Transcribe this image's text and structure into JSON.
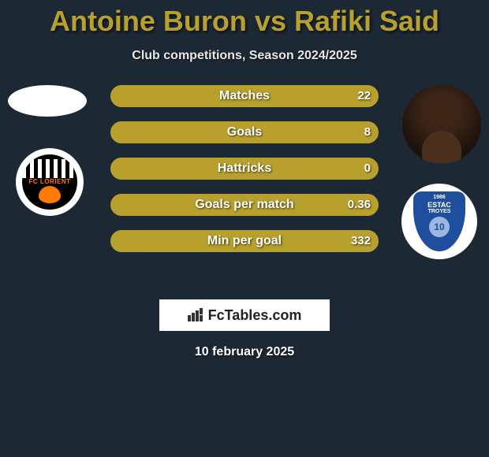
{
  "title_color": "#b7a02e",
  "title": "Antoine Buron vs Rafiki Said",
  "subtitle": "Club competitions, Season 2024/2025",
  "bars": {
    "outline_color": "#b7a02e",
    "rows": [
      {
        "label": "Matches",
        "right_value": "22"
      },
      {
        "label": "Goals",
        "right_value": "8"
      },
      {
        "label": "Hattricks",
        "right_value": "0"
      },
      {
        "label": "Goals per match",
        "right_value": "0.36"
      },
      {
        "label": "Min per goal",
        "right_value": "332"
      }
    ]
  },
  "clubs": {
    "left": {
      "name": "FC LORIENT",
      "primary": "#ff7a00"
    },
    "right": {
      "year": "1986",
      "name": "ESTAC",
      "name2": "TROYES",
      "number": "10",
      "primary": "#1e4e9c"
    }
  },
  "footer": {
    "logo_text": "FcTables.com",
    "date": "10 february 2025"
  }
}
